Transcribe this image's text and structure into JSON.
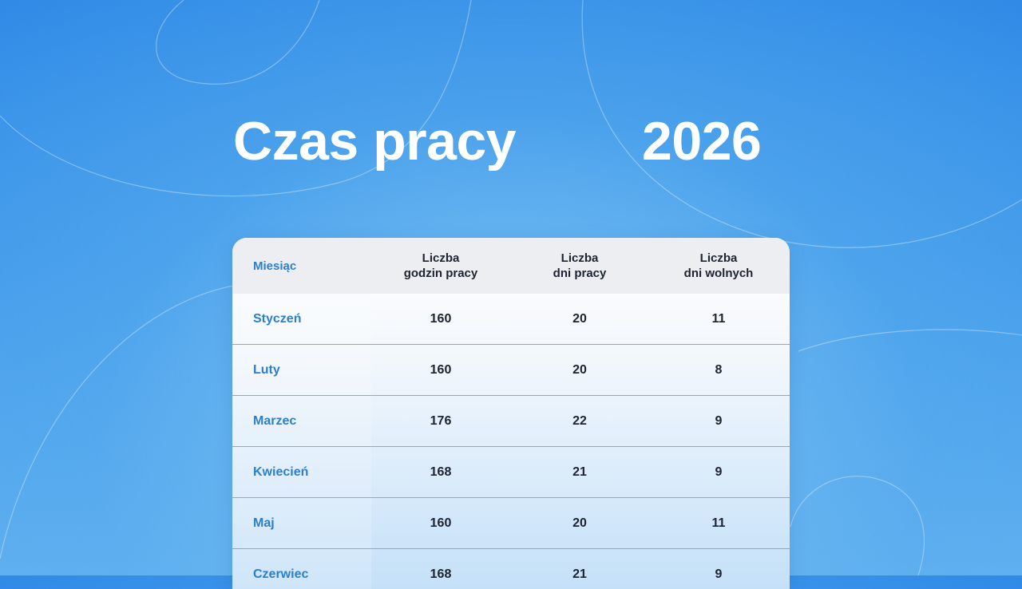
{
  "title": {
    "main": "Czas pracy",
    "year": "2026"
  },
  "table": {
    "headers": {
      "month": "Miesiąc",
      "hours": [
        "Liczba",
        "godzin pracy"
      ],
      "workdays": [
        "Liczba",
        "dni pracy"
      ],
      "daysoff": [
        "Liczba",
        "dni wolnych"
      ]
    },
    "rows": [
      {
        "month": "Styczeń",
        "hours": "160",
        "workdays": "20",
        "daysoff": "11"
      },
      {
        "month": "Luty",
        "hours": "160",
        "workdays": "20",
        "daysoff": "8"
      },
      {
        "month": "Marzec",
        "hours": "176",
        "workdays": "22",
        "daysoff": "9"
      },
      {
        "month": "Kwiecień",
        "hours": "168",
        "workdays": "21",
        "daysoff": "9"
      },
      {
        "month": "Maj",
        "hours": "160",
        "workdays": "20",
        "daysoff": "11"
      },
      {
        "month": "Czerwiec",
        "hours": "168",
        "workdays": "21",
        "daysoff": "9"
      }
    ]
  },
  "colors": {
    "accent": "#2a7fd1",
    "text": "#1d2330",
    "background": "#3f98ea"
  }
}
